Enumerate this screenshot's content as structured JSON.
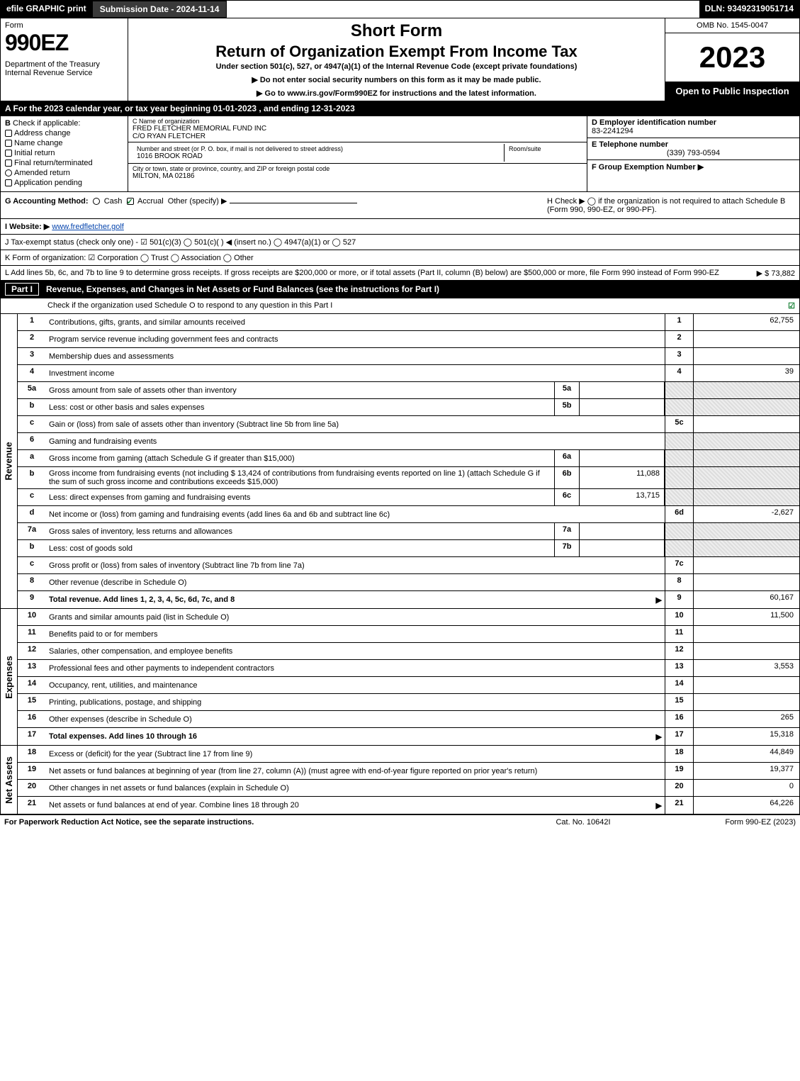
{
  "top": {
    "efile": "efile GRAPHIC print",
    "submission_date_label": "Submission Date - 2024-11-14",
    "dln": "DLN: 93492319051714"
  },
  "header": {
    "form_word": "Form",
    "form_number": "990EZ",
    "department": "Department of the Treasury\nInternal Revenue Service",
    "short_form": "Short Form",
    "return_title": "Return of Organization Exempt From Income Tax",
    "under_section": "Under section 501(c), 527, or 4947(a)(1) of the Internal Revenue Code (except private foundations)",
    "no_ssn": "▶ Do not enter social security numbers on this form as it may be made public.",
    "goto": "▶ Go to www.irs.gov/Form990EZ for instructions and the latest information.",
    "omb": "OMB No. 1545-0047",
    "year": "2023",
    "open_to_public": "Open to Public Inspection"
  },
  "row_a": "A  For the 2023 calendar year, or tax year beginning 01-01-2023 , and ending 12-31-2023",
  "section_b": {
    "label": "B",
    "check_label": "Check if applicable:",
    "options": [
      "Address change",
      "Name change",
      "Initial return",
      "Final return/terminated",
      "Amended return",
      "Application pending"
    ]
  },
  "section_c": {
    "name_label": "C Name of organization",
    "org_name": "FRED FLETCHER MEMORIAL FUND INC",
    "care_of": "C/O RYAN FLETCHER",
    "street_label": "Number and street (or P. O. box, if mail is not delivered to street address)",
    "room_label": "Room/suite",
    "street": "1016 BROOK ROAD",
    "city_label": "City or town, state or province, country, and ZIP or foreign postal code",
    "city": "MILTON, MA  02186"
  },
  "section_d": {
    "label": "D Employer identification number",
    "value": "83-2241294"
  },
  "section_e": {
    "label": "E Telephone number",
    "value": "(339) 793-0594"
  },
  "section_f": {
    "label": "F Group Exemption Number  ▶",
    "value": ""
  },
  "row_g": {
    "label": "G Accounting Method:",
    "cash": "Cash",
    "accrual": "Accrual",
    "other": "Other (specify) ▶"
  },
  "row_h": "H  Check ▶  ◯ if the organization is not required to attach Schedule B (Form 990, 990-EZ, or 990-PF).",
  "row_i": {
    "label": "I Website: ▶",
    "value": "www.fredfletcher.golf"
  },
  "row_j": "J Tax-exempt status (check only one) - ☑ 501(c)(3)  ◯ 501(c)(  ) ◀ (insert no.)  ◯ 4947(a)(1) or  ◯ 527",
  "row_k": "K Form of organization:  ☑ Corporation   ◯ Trust   ◯ Association   ◯ Other",
  "row_l": {
    "text": "L Add lines 5b, 6c, and 7b to line 9 to determine gross receipts. If gross receipts are $200,000 or more, or if total assets (Part II, column (B) below) are $500,000 or more, file Form 990 instead of Form 990-EZ",
    "amount": "▶ $ 73,882"
  },
  "part1": {
    "num": "Part I",
    "title": "Revenue, Expenses, and Changes in Net Assets or Fund Balances (see the instructions for Part I)",
    "check_line": "Check if the organization used Schedule O to respond to any question in this Part I",
    "checked": "☑"
  },
  "revenue_label": "Revenue",
  "expenses_label": "Expenses",
  "netassets_label": "Net Assets",
  "revenue_lines": [
    {
      "n": "1",
      "desc": "Contributions, gifts, grants, and similar amounts received",
      "rn": "1",
      "rv": "62,755"
    },
    {
      "n": "2",
      "desc": "Program service revenue including government fees and contracts",
      "rn": "2",
      "rv": ""
    },
    {
      "n": "3",
      "desc": "Membership dues and assessments",
      "rn": "3",
      "rv": ""
    },
    {
      "n": "4",
      "desc": "Investment income",
      "rn": "4",
      "rv": "39"
    },
    {
      "n": "5a",
      "desc": "Gross amount from sale of assets other than inventory",
      "mn": "5a",
      "mv": "",
      "shaded": true
    },
    {
      "n": "b",
      "desc": "Less: cost or other basis and sales expenses",
      "mn": "5b",
      "mv": "",
      "shaded": true
    },
    {
      "n": "c",
      "desc": "Gain or (loss) from sale of assets other than inventory (Subtract line 5b from line 5a)",
      "rn": "5c",
      "rv": ""
    },
    {
      "n": "6",
      "desc": "Gaming and fundraising events",
      "shaded": true,
      "noval": true
    },
    {
      "n": "a",
      "desc": "Gross income from gaming (attach Schedule G if greater than $15,000)",
      "mn": "6a",
      "mv": "",
      "shaded": true
    },
    {
      "n": "b",
      "desc": "Gross income from fundraising events (not including $  13,424         of contributions from fundraising events reported on line 1) (attach Schedule G if the sum of such gross income and contributions exceeds $15,000)",
      "mn": "6b",
      "mv": "11,088",
      "shaded": true
    },
    {
      "n": "c",
      "desc": "Less: direct expenses from gaming and fundraising events",
      "mn": "6c",
      "mv": "13,715",
      "shaded": true
    },
    {
      "n": "d",
      "desc": "Net income or (loss) from gaming and fundraising events (add lines 6a and 6b and subtract line 6c)",
      "rn": "6d",
      "rv": "-2,627"
    },
    {
      "n": "7a",
      "desc": "Gross sales of inventory, less returns and allowances",
      "mn": "7a",
      "mv": "",
      "shaded": true
    },
    {
      "n": "b",
      "desc": "Less: cost of goods sold",
      "mn": "7b",
      "mv": "",
      "shaded": true
    },
    {
      "n": "c",
      "desc": "Gross profit or (loss) from sales of inventory (Subtract line 7b from line 7a)",
      "rn": "7c",
      "rv": ""
    },
    {
      "n": "8",
      "desc": "Other revenue (describe in Schedule O)",
      "rn": "8",
      "rv": ""
    },
    {
      "n": "9",
      "desc": "Total revenue. Add lines 1, 2, 3, 4, 5c, 6d, 7c, and 8",
      "rn": "9",
      "rv": "60,167",
      "bold": true,
      "arrow": true
    }
  ],
  "expense_lines": [
    {
      "n": "10",
      "desc": "Grants and similar amounts paid (list in Schedule O)",
      "rn": "10",
      "rv": "11,500"
    },
    {
      "n": "11",
      "desc": "Benefits paid to or for members",
      "rn": "11",
      "rv": ""
    },
    {
      "n": "12",
      "desc": "Salaries, other compensation, and employee benefits",
      "rn": "12",
      "rv": ""
    },
    {
      "n": "13",
      "desc": "Professional fees and other payments to independent contractors",
      "rn": "13",
      "rv": "3,553"
    },
    {
      "n": "14",
      "desc": "Occupancy, rent, utilities, and maintenance",
      "rn": "14",
      "rv": ""
    },
    {
      "n": "15",
      "desc": "Printing, publications, postage, and shipping",
      "rn": "15",
      "rv": ""
    },
    {
      "n": "16",
      "desc": "Other expenses (describe in Schedule O)",
      "rn": "16",
      "rv": "265"
    },
    {
      "n": "17",
      "desc": "Total expenses. Add lines 10 through 16",
      "rn": "17",
      "rv": "15,318",
      "bold": true,
      "arrow": true
    }
  ],
  "netasset_lines": [
    {
      "n": "18",
      "desc": "Excess or (deficit) for the year (Subtract line 17 from line 9)",
      "rn": "18",
      "rv": "44,849"
    },
    {
      "n": "19",
      "desc": "Net assets or fund balances at beginning of year (from line 27, column (A)) (must agree with end-of-year figure reported on prior year's return)",
      "rn": "19",
      "rv": "19,377"
    },
    {
      "n": "20",
      "desc": "Other changes in net assets or fund balances (explain in Schedule O)",
      "rn": "20",
      "rv": "0"
    },
    {
      "n": "21",
      "desc": "Net assets or fund balances at end of year. Combine lines 18 through 20",
      "rn": "21",
      "rv": "64,226",
      "arrow": true
    }
  ],
  "footer": {
    "left": "For Paperwork Reduction Act Notice, see the separate instructions.",
    "center": "Cat. No. 10642I",
    "right": "Form 990-EZ (2023)"
  }
}
